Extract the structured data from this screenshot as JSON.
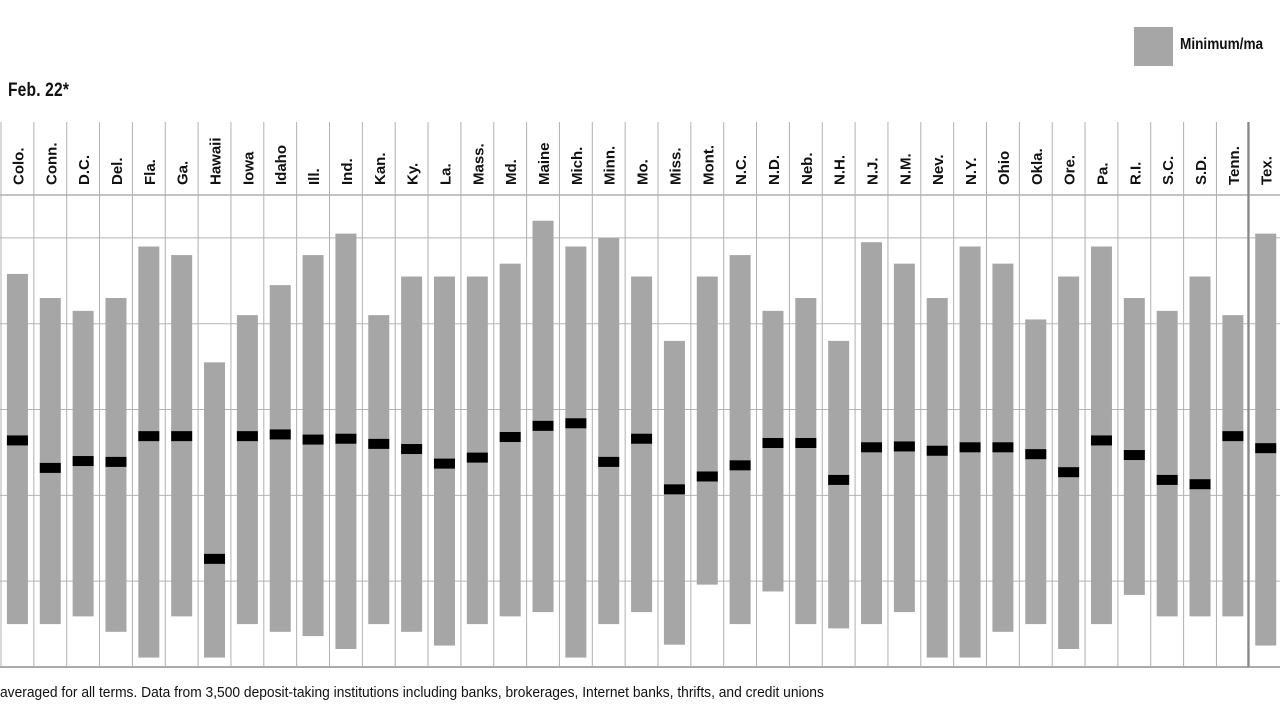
{
  "header": {
    "date_label": "Feb. 22*"
  },
  "legend": {
    "label": "Minimum/ma",
    "color": "#a6a6a6"
  },
  "footnote": "averaged for all terms. Data from 3,500 deposit-taking institutions including banks, brokerages, Internet banks, thrifts, and credit unions",
  "chart_data": {
    "type": "bar",
    "bar_style": "floating min/max range with average marker",
    "categories": [
      "Colo.",
      "Conn.",
      "D.C.",
      "Del.",
      "Fla.",
      "Ga.",
      "Hawaii",
      "Iowa",
      "Idaho",
      "Ill.",
      "Ind.",
      "Kan.",
      "Ky.",
      "La.",
      "Mass.",
      "Md.",
      "Maine",
      "Mich.",
      "Minn.",
      "Mo.",
      "Miss.",
      "Mont.",
      "N.C.",
      "N.D.",
      "Neb.",
      "N.H.",
      "N.J.",
      "N.M.",
      "Nev.",
      "N.Y.",
      "Ohio",
      "Okla.",
      "Ore.",
      "Pa.",
      "R.I.",
      "S.C.",
      "S.D.",
      "Tenn.",
      "Tex."
    ],
    "series": [
      {
        "name": "Minimum/ma",
        "min": [
          0.5,
          0.5,
          0.59,
          0.41,
          0.11,
          0.59,
          0.11,
          0.5,
          0.41,
          0.36,
          0.21,
          0.5,
          0.41,
          0.25,
          0.5,
          0.59,
          0.64,
          0.11,
          0.5,
          0.64,
          0.26,
          0.96,
          0.5,
          0.88,
          0.5,
          0.45,
          0.5,
          0.64,
          0.11,
          0.11,
          0.41,
          0.5,
          0.21,
          0.5,
          0.84,
          0.59,
          0.59,
          0.59,
          0.25
        ],
        "max": [
          4.58,
          4.3,
          4.15,
          4.3,
          4.9,
          4.8,
          3.55,
          4.1,
          4.45,
          4.8,
          5.05,
          4.1,
          4.55,
          4.55,
          4.55,
          4.7,
          5.2,
          4.9,
          5.0,
          4.55,
          3.8,
          4.55,
          4.8,
          4.15,
          4.3,
          3.8,
          4.95,
          4.7,
          4.3,
          4.9,
          4.7,
          4.05,
          4.55,
          4.9,
          4.3,
          4.15,
          4.55,
          4.1,
          5.05
        ]
      },
      {
        "name": "average",
        "avg": [
          2.64,
          2.32,
          2.4,
          2.39,
          2.69,
          2.69,
          1.26,
          2.69,
          2.71,
          2.65,
          2.66,
          2.6,
          2.54,
          2.37,
          2.44,
          2.68,
          2.81,
          2.84,
          2.39,
          2.66,
          2.07,
          2.22,
          2.35,
          2.61,
          2.61,
          2.18,
          2.56,
          2.57,
          2.52,
          2.56,
          2.56,
          2.48,
          2.27,
          2.64,
          2.47,
          2.18,
          2.13,
          2.69,
          2.55
        ]
      }
    ],
    "ylim": [
      0,
      5.5
    ],
    "grid": true,
    "title": "",
    "xlabel": "",
    "ylabel": "",
    "legend_position": "top-right"
  }
}
